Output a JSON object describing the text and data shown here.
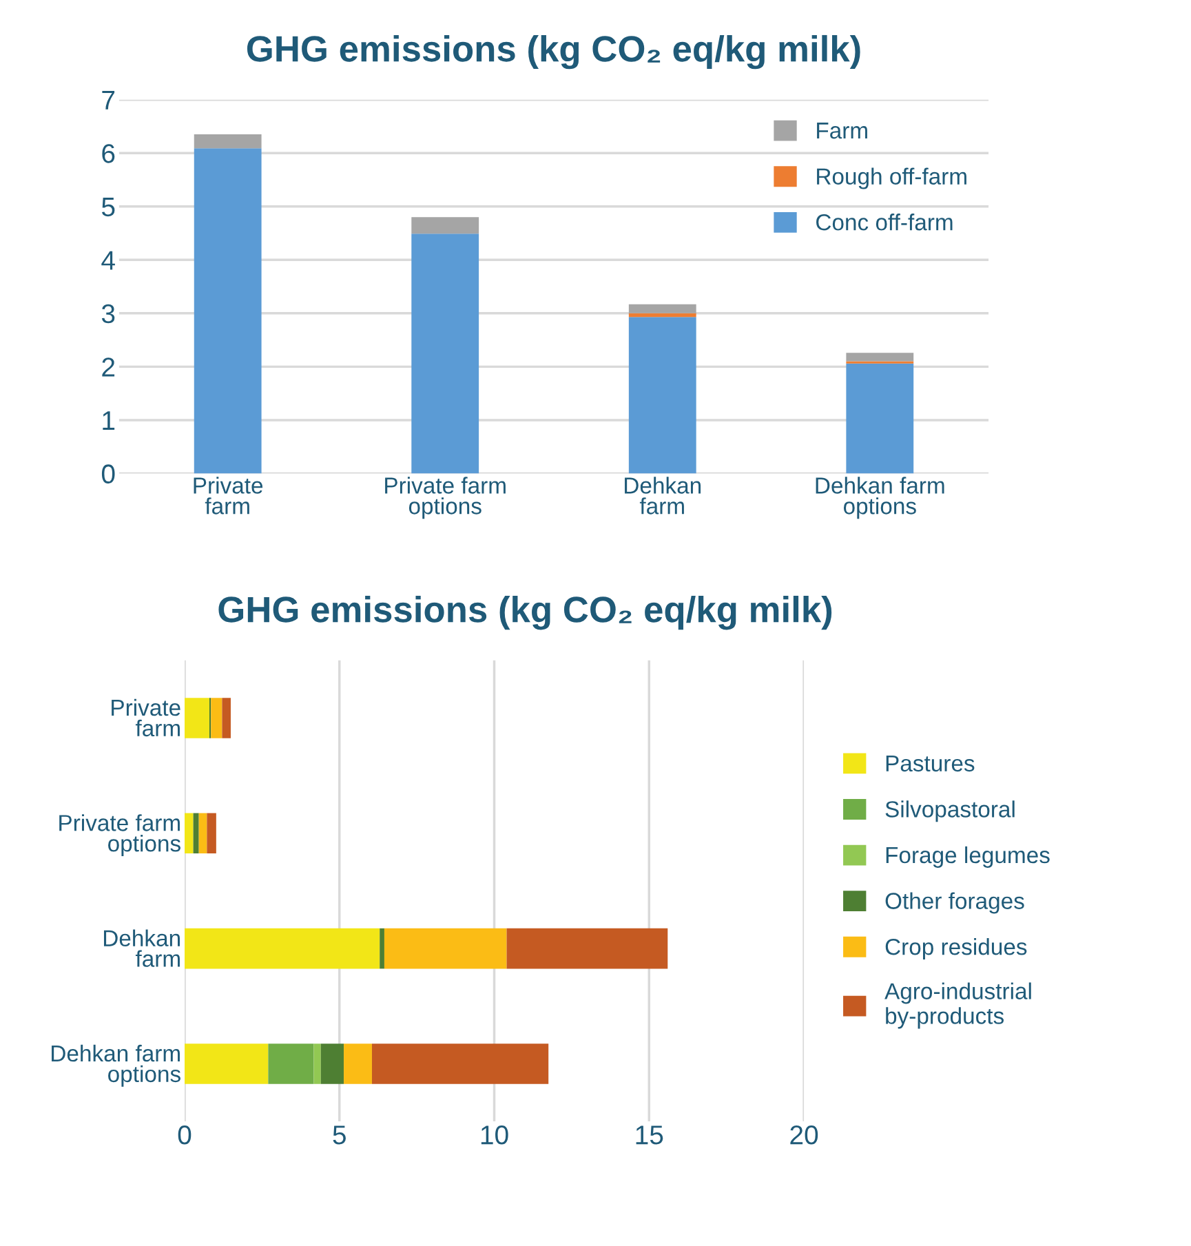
{
  "chart_data": [
    {
      "type": "bar",
      "title": "GHG emissions (kg CO₂ eq/kg milk)",
      "categories": [
        "Private\nfarm",
        "Private farm\noptions",
        "Dehkan\nfarm",
        "Dehkan farm\noptions"
      ],
      "stacked": true,
      "ylim": [
        0,
        7
      ],
      "yticks": [
        0,
        1,
        2,
        3,
        4,
        5,
        6,
        7
      ],
      "grid": "y",
      "legend": "top right",
      "series": [
        {
          "name": "Conc off-farm",
          "color": "#5b9bd5",
          "values": [
            6.09,
            4.49,
            2.93,
            2.06
          ]
        },
        {
          "name": "Rough off-farm",
          "color": "#ed7d31",
          "values": [
            0,
            0,
            0.07,
            0.04
          ]
        },
        {
          "name": "Farm",
          "color": "#a5a5a5",
          "values": [
            0.26,
            0.31,
            0.17,
            0.16
          ]
        }
      ]
    },
    {
      "type": "bar",
      "orientation": "horizontal",
      "title": "GHG emissions (kg CO₂ eq/kg milk)",
      "categories": [
        "Private\nfarm",
        "Private farm\noptions",
        "Dehkan\nfarm",
        "Dehkan farm\noptions"
      ],
      "stacked": true,
      "xlim": [
        0,
        20
      ],
      "xticks": [
        0,
        5,
        10,
        15,
        20
      ],
      "grid": "x",
      "legend": "right",
      "series": [
        {
          "name": "Pastures",
          "color": "#f2e617",
          "values": [
            0.8,
            0.28,
            6.3,
            2.7
          ]
        },
        {
          "name": "Silvopastoral",
          "color": "#70ad47",
          "values": [
            0,
            0,
            0,
            1.47
          ]
        },
        {
          "name": "Forage legumes",
          "color": "#92c853",
          "values": [
            0,
            0,
            0,
            0.23
          ]
        },
        {
          "name": "Other forages",
          "color": "#4e7f33",
          "values": [
            0.05,
            0.18,
            0.15,
            0.74
          ]
        },
        {
          "name": "Crop residues",
          "color": "#fbbc15",
          "values": [
            0.36,
            0.26,
            3.95,
            0.91
          ]
        },
        {
          "name": "Agro-industrial\nby-products",
          "color": "#c55a22",
          "values": [
            0.28,
            0.3,
            5.2,
            5.7
          ]
        }
      ]
    }
  ]
}
